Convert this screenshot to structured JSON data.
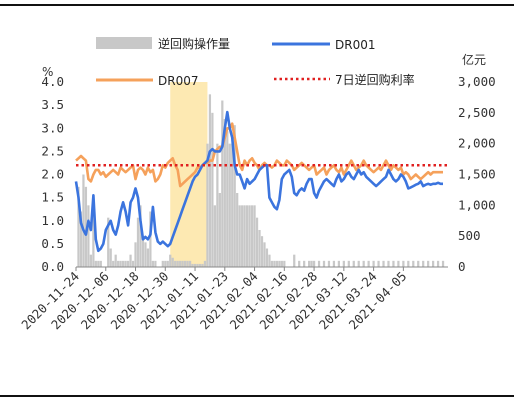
{
  "chart_data": {
    "type": "bar+line",
    "title": "",
    "left_axis": {
      "unit": "%",
      "ticks": [
        "0.0",
        "0.5",
        "1.0",
        "1.5",
        "2.0",
        "2.5",
        "3.0",
        "3.5",
        "4.0"
      ],
      "ylim": [
        0,
        4
      ]
    },
    "right_axis": {
      "unit": "亿元",
      "ticks": [
        "0",
        "500",
        "1,000",
        "1,500",
        "2,000",
        "2,500",
        "3,000"
      ],
      "ylim": [
        0,
        3000
      ]
    },
    "x_tick_labels": [
      "2020-11-24",
      "2020-12-06",
      "2020-12-18",
      "2020-12-30",
      "2021-01-11",
      "2021-01-23",
      "2021-02-04",
      "2021-02-16",
      "2021-02-28",
      "2021-03-12",
      "2021-03-24",
      "2021-04-05"
    ],
    "x_range": [
      0,
      150
    ],
    "x_tick_days": [
      0,
      12,
      24,
      36,
      48,
      60,
      72,
      84,
      96,
      108,
      120,
      132
    ],
    "highlight": {
      "x_start": 38,
      "x_end": 53,
      "color": "#fde9b2"
    },
    "legend": {
      "bars": "逆回购操作量",
      "dr001": "DR001",
      "dr007": "DR007",
      "policy": "7日逆回购利率"
    },
    "colors": {
      "bars": "#c8c8c8",
      "dr001": "#3b74de",
      "dr007": "#f5a15b",
      "policy": "#e02020"
    },
    "policy_rate": 2.2,
    "series": [
      {
        "name": "逆回购操作量",
        "axis": "right",
        "x": [
          1,
          2,
          3,
          4,
          5,
          6,
          7,
          8,
          9,
          10,
          13,
          14,
          15,
          16,
          17,
          18,
          19,
          20,
          21,
          22,
          23,
          24,
          25,
          26,
          27,
          28,
          29,
          30,
          31,
          32,
          35,
          36,
          37,
          38,
          39,
          40,
          41,
          42,
          43,
          44,
          45,
          46,
          47,
          48,
          49,
          50,
          51,
          52,
          53,
          54,
          55,
          56,
          57,
          58,
          59,
          60,
          61,
          62,
          63,
          64,
          65,
          66,
          67,
          68,
          69,
          70,
          71,
          72,
          73,
          74,
          75,
          76,
          77,
          78,
          79,
          80,
          81,
          82,
          83,
          84,
          88,
          90,
          92,
          94,
          95,
          96,
          98,
          100,
          102,
          104,
          106,
          108,
          110,
          112,
          114,
          116,
          118,
          120,
          122,
          124,
          126,
          128,
          130,
          132,
          134,
          136,
          138,
          140,
          142,
          144,
          146,
          148
        ],
        "values": [
          1300,
          900,
          1500,
          1300,
          1000,
          200,
          1000,
          100,
          100,
          100,
          800,
          300,
          100,
          200,
          100,
          100,
          100,
          100,
          100,
          200,
          100,
          400,
          800,
          1000,
          500,
          400,
          300,
          900,
          100,
          100,
          100,
          100,
          100,
          200,
          150,
          100,
          100,
          100,
          100,
          100,
          100,
          100,
          50,
          50,
          50,
          50,
          50,
          100,
          2000,
          2800,
          2500,
          1000,
          2000,
          1200,
          2700,
          2400,
          2200,
          2000,
          2000,
          2300,
          1200,
          1000,
          1000,
          1000,
          1000,
          1000,
          1000,
          1000,
          800,
          600,
          500,
          400,
          300,
          200,
          100,
          100,
          100,
          100,
          100,
          100,
          200,
          100,
          100,
          100,
          100,
          100,
          100,
          100,
          100,
          100,
          100,
          100,
          100,
          100,
          100,
          100,
          100,
          100,
          100,
          100,
          100,
          100,
          100,
          100,
          100,
          100,
          100,
          100,
          100,
          100,
          100,
          100
        ]
      },
      {
        "name": "DR001",
        "axis": "left",
        "x": [
          0,
          1,
          2,
          3,
          4,
          5,
          6,
          7,
          8,
          9,
          10,
          11,
          12,
          13,
          14,
          15,
          16,
          17,
          18,
          19,
          20,
          21,
          22,
          23,
          24,
          25,
          26,
          27,
          28,
          29,
          30,
          31,
          32,
          33,
          34,
          35,
          36,
          37,
          38,
          39,
          40,
          41,
          42,
          43,
          44,
          45,
          46,
          47,
          48,
          49,
          50,
          51,
          52,
          53,
          54,
          55,
          56,
          57,
          58,
          59,
          60,
          61,
          62,
          63,
          64,
          65,
          66,
          67,
          68,
          69,
          70,
          71,
          72,
          73,
          74,
          75,
          76,
          77,
          78,
          79,
          80,
          81,
          82,
          83,
          84,
          85,
          86,
          87,
          88,
          89,
          90,
          91,
          92,
          93,
          94,
          95,
          96,
          97,
          98,
          99,
          100,
          101,
          102,
          103,
          104,
          105,
          106,
          107,
          108,
          109,
          110,
          111,
          112,
          113,
          114,
          115,
          116,
          117,
          118,
          119,
          120,
          121,
          122,
          123,
          124,
          125,
          126,
          127,
          128,
          129,
          130,
          131,
          132,
          133,
          134,
          135,
          136,
          137,
          138,
          139,
          140,
          141,
          142,
          143,
          144,
          145,
          146,
          147,
          148
        ],
        "values": [
          1.85,
          1.5,
          0.95,
          0.8,
          0.7,
          1.0,
          0.8,
          1.55,
          0.6,
          0.35,
          0.4,
          0.5,
          0.8,
          0.9,
          1.0,
          0.8,
          0.7,
          0.9,
          1.2,
          1.4,
          1.2,
          0.9,
          1.4,
          1.5,
          1.7,
          1.5,
          1.0,
          0.6,
          0.65,
          0.6,
          0.7,
          1.3,
          0.75,
          0.55,
          0.5,
          0.55,
          0.5,
          0.45,
          0.5,
          0.65,
          0.8,
          0.95,
          1.1,
          1.25,
          1.4,
          1.55,
          1.7,
          1.85,
          1.95,
          2.0,
          2.1,
          2.2,
          2.25,
          2.3,
          2.5,
          2.55,
          2.5,
          2.5,
          2.5,
          2.6,
          3.0,
          3.35,
          3.0,
          2.8,
          2.2,
          2.0,
          2.0,
          1.85,
          1.7,
          1.9,
          1.8,
          1.85,
          1.9,
          2.0,
          2.1,
          2.15,
          2.2,
          2.2,
          1.5,
          1.4,
          1.3,
          1.25,
          1.45,
          1.9,
          2.0,
          2.05,
          2.1,
          1.95,
          1.6,
          1.55,
          1.65,
          1.7,
          1.65,
          1.8,
          1.9,
          1.9,
          1.6,
          1.5,
          1.65,
          1.75,
          1.85,
          1.9,
          1.85,
          1.8,
          1.75,
          1.9,
          2.0,
          1.85,
          1.9,
          2.0,
          2.05,
          1.95,
          1.9,
          2.0,
          2.1,
          2.0,
          2.05,
          1.95,
          1.9,
          1.85,
          1.8,
          1.75,
          1.8,
          1.85,
          1.9,
          1.95,
          2.1,
          2.0,
          1.9,
          1.85,
          1.9,
          2.0,
          1.95,
          1.85,
          1.7,
          1.72,
          1.75,
          1.78,
          1.8,
          1.85,
          1.75,
          1.78,
          1.8,
          1.78,
          1.8,
          1.8,
          1.82,
          1.8,
          1.8
        ]
      },
      {
        "name": "DR007",
        "axis": "left",
        "x": [
          0,
          1,
          2,
          3,
          4,
          5,
          6,
          7,
          8,
          9,
          10,
          11,
          12,
          13,
          14,
          15,
          16,
          17,
          18,
          19,
          20,
          21,
          22,
          23,
          24,
          25,
          26,
          27,
          28,
          29,
          30,
          31,
          32,
          33,
          34,
          35,
          36,
          37,
          38,
          39,
          40,
          41,
          42,
          43,
          44,
          45,
          46,
          47,
          48,
          49,
          50,
          51,
          52,
          53,
          54,
          55,
          56,
          57,
          58,
          59,
          60,
          61,
          62,
          63,
          64,
          65,
          66,
          67,
          68,
          69,
          70,
          71,
          72,
          73,
          74,
          75,
          76,
          77,
          78,
          79,
          80,
          81,
          82,
          83,
          84,
          85,
          86,
          87,
          88,
          89,
          90,
          91,
          92,
          93,
          94,
          95,
          96,
          97,
          98,
          99,
          100,
          101,
          102,
          103,
          104,
          105,
          106,
          107,
          108,
          109,
          110,
          111,
          112,
          113,
          114,
          115,
          116,
          117,
          118,
          119,
          120,
          121,
          122,
          123,
          124,
          125,
          126,
          127,
          128,
          129,
          130,
          131,
          132,
          133,
          134,
          135,
          136,
          137,
          138,
          139,
          140,
          141,
          142,
          143,
          144,
          145,
          146,
          147,
          148
        ],
        "values": [
          2.3,
          2.35,
          2.4,
          2.35,
          2.3,
          1.9,
          1.85,
          2.0,
          2.1,
          2.1,
          2.0,
          2.05,
          1.95,
          2.0,
          2.05,
          2.1,
          2.05,
          2.0,
          2.15,
          2.1,
          2.05,
          2.1,
          2.15,
          2.2,
          1.9,
          2.1,
          2.15,
          2.1,
          2.0,
          2.15,
          2.05,
          2.1,
          1.85,
          1.9,
          2.0,
          2.2,
          2.15,
          2.25,
          2.3,
          2.35,
          2.2,
          2.1,
          1.75,
          1.8,
          1.85,
          1.9,
          1.95,
          2.0,
          2.05,
          2.15,
          2.15,
          2.2,
          2.25,
          2.25,
          2.3,
          2.3,
          2.5,
          2.55,
          2.6,
          2.6,
          2.8,
          3.0,
          3.0,
          3.1,
          2.8,
          2.5,
          2.2,
          2.1,
          2.3,
          2.2,
          2.3,
          2.35,
          2.25,
          2.2,
          2.1,
          2.2,
          2.25,
          2.2,
          2.2,
          2.15,
          2.2,
          2.3,
          2.25,
          2.2,
          2.2,
          2.3,
          2.25,
          2.2,
          2.1,
          2.15,
          2.2,
          2.25,
          2.2,
          2.15,
          2.1,
          2.15,
          2.2,
          2.0,
          2.05,
          2.1,
          2.15,
          2.0,
          2.1,
          2.15,
          2.2,
          2.1,
          2.05,
          2.15,
          2.0,
          2.1,
          2.2,
          2.3,
          2.2,
          2.1,
          2.15,
          2.2,
          2.3,
          2.2,
          2.15,
          2.1,
          2.05,
          2.1,
          2.15,
          2.1,
          2.2,
          2.3,
          2.2,
          2.1,
          2.2,
          2.15,
          2.1,
          2.15,
          2.0,
          2.05,
          2.0,
          1.9,
          1.95,
          2.0,
          1.95,
          1.9,
          1.95,
          2.0,
          2.05,
          2.0,
          2.05,
          2.05,
          2.05,
          2.05,
          2.05
        ]
      }
    ]
  }
}
